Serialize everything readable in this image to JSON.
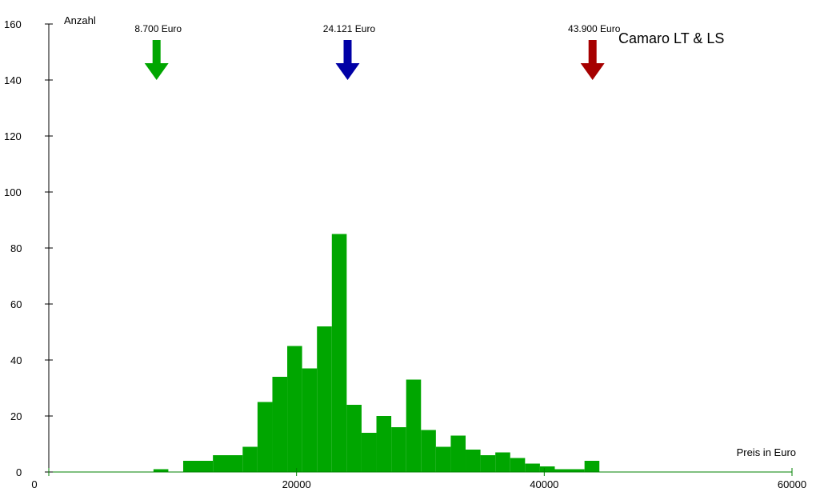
{
  "chart_data": {
    "type": "bar",
    "title": "Camaro LT & LS",
    "xlabel": "Preis in Euro",
    "ylabel": "Anzahl",
    "xlim": [
      0,
      60000
    ],
    "ylim": [
      0,
      160
    ],
    "x_ticks": [
      {
        "value": 0,
        "label": "0"
      },
      {
        "value": 20000,
        "label": "20000"
      },
      {
        "value": 40000,
        "label": "40000"
      },
      {
        "value": 60000,
        "label": "60000"
      }
    ],
    "y_ticks": [
      {
        "value": 0,
        "label": "0"
      },
      {
        "value": 20,
        "label": "20"
      },
      {
        "value": 40,
        "label": "40"
      },
      {
        "value": 60,
        "label": "60"
      },
      {
        "value": 80,
        "label": "80"
      },
      {
        "value": 100,
        "label": "100"
      },
      {
        "value": 120,
        "label": "120"
      },
      {
        "value": 140,
        "label": "140"
      },
      {
        "value": 160,
        "label": "160"
      }
    ],
    "bar_color": "#00a600",
    "bins": [
      {
        "from": 8450,
        "to": 9650,
        "count": 1
      },
      {
        "from": 10850,
        "to": 13250,
        "count": 4
      },
      {
        "from": 13250,
        "to": 15650,
        "count": 6
      },
      {
        "from": 15650,
        "to": 16850,
        "count": 9
      },
      {
        "from": 16850,
        "to": 18050,
        "count": 25
      },
      {
        "from": 18050,
        "to": 19250,
        "count": 34
      },
      {
        "from": 19250,
        "to": 20450,
        "count": 45
      },
      {
        "from": 20450,
        "to": 21650,
        "count": 37
      },
      {
        "from": 21650,
        "to": 22850,
        "count": 52
      },
      {
        "from": 22850,
        "to": 24050,
        "count": 85
      },
      {
        "from": 24050,
        "to": 25250,
        "count": 24
      },
      {
        "from": 25250,
        "to": 26450,
        "count": 14
      },
      {
        "from": 26450,
        "to": 27650,
        "count": 20
      },
      {
        "from": 27650,
        "to": 28850,
        "count": 16
      },
      {
        "from": 28850,
        "to": 30050,
        "count": 33
      },
      {
        "from": 30050,
        "to": 31250,
        "count": 15
      },
      {
        "from": 31250,
        "to": 32450,
        "count": 9
      },
      {
        "from": 32450,
        "to": 33650,
        "count": 13
      },
      {
        "from": 33650,
        "to": 34850,
        "count": 8
      },
      {
        "from": 34850,
        "to": 36050,
        "count": 6
      },
      {
        "from": 36050,
        "to": 37250,
        "count": 7
      },
      {
        "from": 37250,
        "to": 38450,
        "count": 5
      },
      {
        "from": 38450,
        "to": 39650,
        "count": 3
      },
      {
        "from": 39650,
        "to": 40850,
        "count": 2
      },
      {
        "from": 40850,
        "to": 43250,
        "count": 1
      },
      {
        "from": 43250,
        "to": 44450,
        "count": 4
      }
    ],
    "markers": [
      {
        "value": 8700,
        "label": "8.700 Euro",
        "color": "#00a600"
      },
      {
        "value": 24121,
        "label": "24.121 Euro",
        "color": "#0000a6"
      },
      {
        "value": 43900,
        "label": "43.900 Euro",
        "color": "#a60000"
      }
    ],
    "axis_color": "#008000"
  }
}
